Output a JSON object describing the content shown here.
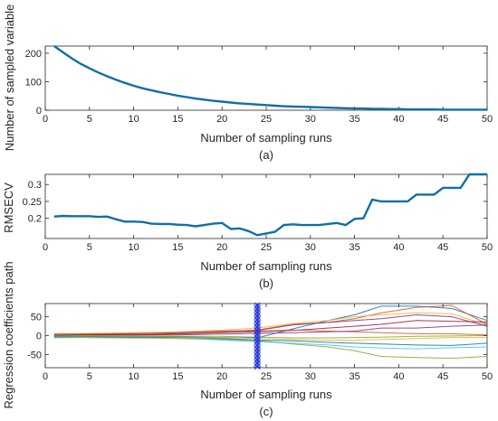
{
  "colors": {
    "primary_line": "#0f6fa8",
    "axis": "#262626",
    "marker": "#1f2fd9",
    "paths": [
      "#0072bd",
      "#d95319",
      "#edb120",
      "#7e2f8e",
      "#77ac30",
      "#4dbeee",
      "#a2142f"
    ]
  },
  "chart_data": [
    {
      "type": "line",
      "panel": "(a)",
      "xlabel": "Number of sampling runs",
      "ylabel": "Number of sampled variable",
      "xlim": [
        0,
        50
      ],
      "ylim": [
        0,
        225
      ],
      "xticks": [
        0,
        5,
        10,
        15,
        20,
        25,
        30,
        35,
        40,
        45,
        50
      ],
      "yticks": [
        0,
        100,
        200
      ],
      "grid": false,
      "series": [
        {
          "x": [
            1,
            2,
            3,
            4,
            5,
            6,
            7,
            8,
            9,
            10,
            11,
            12,
            13,
            14,
            15,
            16,
            17,
            18,
            19,
            20,
            21,
            22,
            23,
            24,
            25,
            26,
            27,
            28,
            29,
            30,
            31,
            32,
            33,
            34,
            35,
            36,
            37,
            38,
            39,
            40,
            41,
            42,
            43,
            44,
            45,
            46,
            47,
            48,
            49,
            50
          ],
          "values": [
            225,
            203,
            182,
            163,
            147,
            132,
            119,
            107,
            96,
            86,
            77,
            70,
            63,
            57,
            51,
            46,
            41,
            37,
            33,
            30,
            27,
            24,
            22,
            20,
            18,
            16,
            14,
            13,
            12,
            11,
            10,
            9,
            8,
            7,
            6,
            6,
            5,
            5,
            4,
            4,
            3,
            3,
            3,
            3,
            2,
            2,
            2,
            2,
            2,
            2
          ]
        }
      ]
    },
    {
      "type": "line",
      "panel": "(b)",
      "xlabel": "Number of sampling runs",
      "ylabel": "RMSECV",
      "xlim": [
        0,
        50
      ],
      "ylim": [
        0.14,
        0.33
      ],
      "xticks": [
        0,
        5,
        10,
        15,
        20,
        25,
        30,
        35,
        40,
        45,
        50
      ],
      "yticks": [
        0.2,
        0.25,
        0.3
      ],
      "grid": false,
      "series": [
        {
          "x": [
            1,
            2,
            3,
            4,
            5,
            6,
            7,
            8,
            9,
            10,
            11,
            12,
            13,
            14,
            15,
            16,
            17,
            18,
            19,
            20,
            21,
            22,
            23,
            24,
            25,
            26,
            27,
            28,
            29,
            30,
            31,
            32,
            33,
            34,
            35,
            36,
            37,
            38,
            39,
            40,
            41,
            42,
            43,
            44,
            45,
            46,
            47,
            48,
            49,
            50
          ],
          "values": [
            0.205,
            0.207,
            0.206,
            0.206,
            0.206,
            0.204,
            0.205,
            0.197,
            0.19,
            0.19,
            0.189,
            0.184,
            0.183,
            0.183,
            0.181,
            0.18,
            0.176,
            0.18,
            0.184,
            0.186,
            0.168,
            0.17,
            0.162,
            0.15,
            0.155,
            0.16,
            0.18,
            0.182,
            0.18,
            0.18,
            0.18,
            0.183,
            0.186,
            0.18,
            0.198,
            0.2,
            0.255,
            0.25,
            0.25,
            0.25,
            0.25,
            0.27,
            0.27,
            0.27,
            0.29,
            0.29,
            0.29,
            0.33,
            0.33,
            0.33
          ]
        }
      ]
    },
    {
      "type": "line",
      "panel": "(c)",
      "xlabel": "Number of sampling runs",
      "ylabel": "Regression coefficients path",
      "xlim": [
        0,
        50
      ],
      "ylim": [
        -85,
        85
      ],
      "xticks": [
        0,
        5,
        10,
        15,
        20,
        25,
        30,
        35,
        40,
        45,
        50
      ],
      "yticks": [
        -50,
        0,
        50
      ],
      "grid": false,
      "marker_line": {
        "x": 24,
        "style": "asterisk"
      },
      "x": [
        1,
        5,
        10,
        15,
        20,
        24,
        28,
        32,
        35,
        38,
        42,
        46,
        50
      ],
      "series": [
        {
          "values": [
            -2,
            -4,
            -3,
            -3,
            -5,
            -6,
            18,
            40,
            55,
            78,
            78,
            72,
            40
          ]
        },
        {
          "values": [
            0,
            2,
            3,
            5,
            10,
            15,
            30,
            35,
            45,
            60,
            75,
            80,
            30
          ]
        },
        {
          "values": [
            4,
            6,
            8,
            10,
            15,
            20,
            32,
            40,
            50,
            55,
            60,
            58,
            28
          ]
        },
        {
          "values": [
            2,
            4,
            5,
            8,
            12,
            14,
            28,
            35,
            40,
            45,
            55,
            50,
            25
          ]
        },
        {
          "values": [
            -3,
            -5,
            -6,
            -8,
            -10,
            -13,
            -22,
            -30,
            -40,
            -55,
            -58,
            -60,
            -55
          ]
        },
        {
          "values": [
            -1,
            -2,
            -3,
            -6,
            -12,
            -16,
            -20,
            -25,
            -30,
            -33,
            -35,
            -32,
            -30
          ]
        },
        {
          "values": [
            1,
            3,
            2,
            4,
            8,
            10,
            14,
            20,
            25,
            30,
            40,
            38,
            36
          ]
        },
        {
          "values": [
            -4,
            -3,
            -4,
            -5,
            -8,
            -12,
            -14,
            -18,
            -20,
            -22,
            -25,
            -26,
            -20
          ]
        },
        {
          "values": [
            5,
            4,
            6,
            6,
            8,
            12,
            15,
            12,
            10,
            8,
            5,
            5,
            2
          ]
        },
        {
          "values": [
            -6,
            -5,
            -7,
            -6,
            -5,
            -8,
            -10,
            -12,
            -12,
            -10,
            -8,
            -5,
            -5
          ]
        },
        {
          "values": [
            0,
            1,
            2,
            2,
            4,
            6,
            8,
            10,
            12,
            20,
            20,
            25,
            28
          ]
        },
        {
          "values": [
            2,
            0,
            -1,
            -2,
            -2,
            -4,
            -6,
            -6,
            -5,
            -4,
            -2,
            -1,
            0
          ]
        }
      ]
    }
  ]
}
